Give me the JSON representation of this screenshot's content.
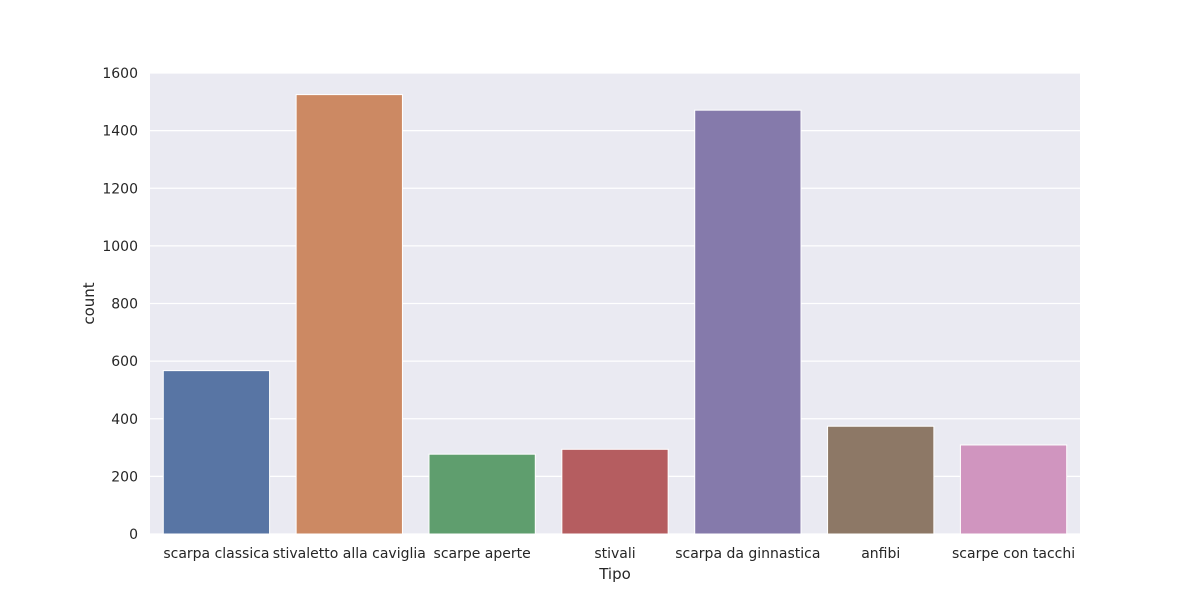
{
  "chart_data": {
    "type": "bar",
    "title": "",
    "xlabel": "Tipo",
    "ylabel": "count",
    "ylim": [
      0,
      1600
    ],
    "yticks": [
      0,
      200,
      400,
      600,
      800,
      1000,
      1200,
      1400,
      1600
    ],
    "grid": true,
    "legend": "none",
    "categories": [
      "scarpa classica",
      "stivaletto alla caviglia",
      "scarpe aperte",
      "stivali",
      "scarpa da ginnastica",
      "anfibi",
      "scarpe con tacchi"
    ],
    "values": [
      567,
      1525,
      277,
      294,
      1471,
      374,
      309
    ],
    "colors": [
      "#5875a4",
      "#cc8963",
      "#5f9e6e",
      "#b55d60",
      "#857aab",
      "#8d7866",
      "#d095bf"
    ],
    "background_color": "#eaeaf2",
    "grid_color": "#ffffff"
  }
}
